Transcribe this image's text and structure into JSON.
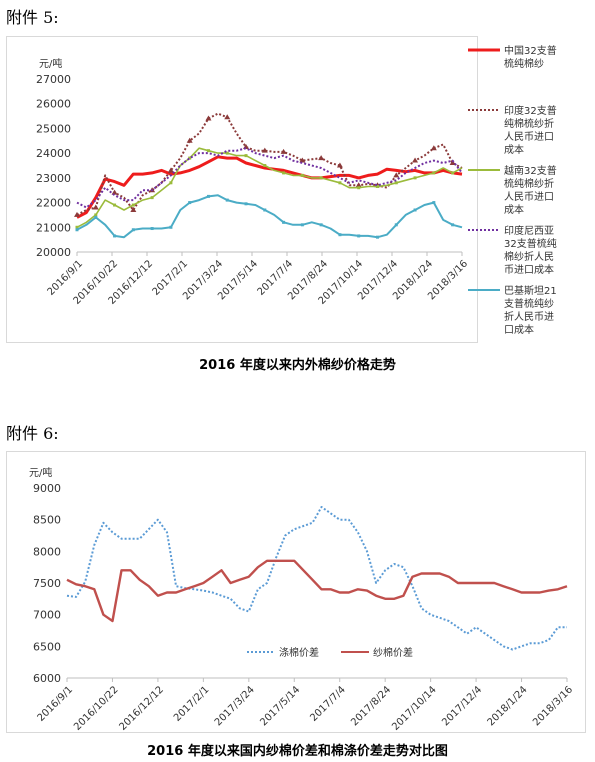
{
  "attachments": [
    {
      "label": "附件 5:",
      "caption": "2016 年度以来内外棉纱价格走势"
    },
    {
      "label": "附件 6:",
      "caption": "2016 年度以来国内纱棉价差和棉涤价差走势对比图"
    }
  ],
  "chart_data": [
    {
      "type": "line",
      "ylabel": "元/吨",
      "ylim": [
        20000,
        27000
      ],
      "yticks": [
        20000,
        21000,
        22000,
        23000,
        24000,
        25000,
        26000,
        27000
      ],
      "xticks": [
        "2016/9/1",
        "2016/10/22",
        "2016/12/12",
        "2017/2/1",
        "2017/3/24",
        "2017/5/14",
        "2017/7/4",
        "2017/8/24",
        "2017/10/14",
        "2017/12/4",
        "2018/1/24",
        "2018/3/16"
      ],
      "grid": false,
      "legend_position": "right",
      "series": [
        {
          "name": "中国32支普梳纯棉纱",
          "color": "#ee1c1c",
          "style": "solid",
          "values": [
            21400,
            21600,
            22200,
            22950,
            22850,
            22700,
            23150,
            23150,
            23200,
            23300,
            23150,
            23200,
            23300,
            23450,
            23650,
            23850,
            23800,
            23800,
            23600,
            23500,
            23400,
            23350,
            23300,
            23200,
            23100,
            23000,
            23000,
            23050,
            23100,
            23100,
            23000,
            23100,
            23150,
            23350,
            23300,
            23250,
            23300,
            23200,
            23200,
            23300,
            23200,
            23150
          ]
        },
        {
          "name": "印度32支普梳纯棉梳纱折人民币进口成本",
          "color": "#8b3a3a",
          "style": "dotted-triangle",
          "values": [
            21500,
            21700,
            21800,
            23100,
            22400,
            22200,
            21700,
            22300,
            22500,
            22800,
            23300,
            23800,
            24500,
            24800,
            25400,
            25600,
            25450,
            24800,
            24250,
            24100,
            24100,
            24050,
            24050,
            23900,
            23700,
            23750,
            23800,
            23600,
            23500,
            22700,
            22700,
            22750,
            22700,
            22600,
            23100,
            23400,
            23700,
            23900,
            24200,
            24350,
            23600,
            23400
          ]
        },
        {
          "name": "越南32支普梳纯棉纱折人民币进口成本",
          "color": "#9bbb3b",
          "style": "solid-marker",
          "values": [
            21000,
            21200,
            21500,
            22100,
            21900,
            21700,
            21900,
            22100,
            22200,
            22500,
            22800,
            23500,
            23800,
            24200,
            24100,
            24000,
            24000,
            23900,
            23900,
            23700,
            23500,
            23300,
            23200,
            23100,
            23100,
            23000,
            23000,
            22900,
            22800,
            22600,
            22600,
            22650,
            22650,
            22700,
            22800,
            22900,
            23000,
            23100,
            23200,
            23400,
            23200,
            23400
          ]
        },
        {
          "name": "印度尼西亚32支普梳纯棉纱折人民币进口成本",
          "color": "#7030a0",
          "style": "dotted",
          "values": [
            22000,
            21800,
            22100,
            22600,
            22300,
            22100,
            22100,
            22500,
            22500,
            22800,
            23100,
            23500,
            23800,
            24000,
            24000,
            23900,
            24100,
            24100,
            24200,
            24000,
            23900,
            23800,
            23900,
            23700,
            23600,
            23500,
            23400,
            23200,
            23000,
            22800,
            22900,
            22800,
            22700,
            22800,
            22900,
            23200,
            23400,
            23600,
            23700,
            23600,
            23700,
            23200
          ]
        },
        {
          "name": "巴基斯坦21支普梳纯纱折人民币进口成本",
          "color": "#4bacc6",
          "style": "solid-marker",
          "values": [
            20900,
            21100,
            21400,
            21100,
            20650,
            20600,
            20900,
            20950,
            20950,
            20950,
            21000,
            21700,
            22000,
            22100,
            22250,
            22300,
            22100,
            22000,
            21950,
            21900,
            21700,
            21500,
            21200,
            21100,
            21100,
            21200,
            21100,
            20950,
            20700,
            20700,
            20650,
            20650,
            20600,
            20700,
            21100,
            21500,
            21700,
            21900,
            22000,
            21300,
            21100,
            21000
          ]
        }
      ]
    },
    {
      "type": "line",
      "ylabel": "元/吨",
      "ylim": [
        6000,
        9000
      ],
      "yticks": [
        6000,
        6500,
        7000,
        7500,
        8000,
        8500,
        9000
      ],
      "xticks": [
        "2016/9/1",
        "2016/10/22",
        "2016/12/12",
        "2017/2/1",
        "2017/3/24",
        "2017/5/14",
        "2017/7/4",
        "2017/8/24",
        "2017/10/14",
        "2017/12/4",
        "2018/1/24",
        "2018/3/16"
      ],
      "grid": false,
      "legend_position": "bottom-center",
      "series": [
        {
          "name": "涤棉价差",
          "color": "#5b9bd5",
          "style": "dotted",
          "values": [
            7300,
            7280,
            7520,
            8100,
            8450,
            8300,
            8200,
            8200,
            8200,
            8350,
            8500,
            8300,
            7450,
            7420,
            7400,
            7380,
            7350,
            7300,
            7250,
            7100,
            7050,
            7400,
            7500,
            7900,
            8250,
            8350,
            8400,
            8450,
            8700,
            8600,
            8500,
            8500,
            8300,
            8000,
            7500,
            7700,
            7800,
            7750,
            7450,
            7100,
            7000,
            6950,
            6900,
            6800,
            6700,
            6800,
            6700,
            6600,
            6500,
            6450,
            6500,
            6550,
            6550,
            6600,
            6800,
            6800
          ]
        },
        {
          "name": "纱棉价差",
          "color": "#c0504d",
          "style": "solid",
          "values": [
            7550,
            7480,
            7450,
            7400,
            7000,
            6900,
            7700,
            7700,
            7550,
            7450,
            7300,
            7350,
            7350,
            7400,
            7450,
            7500,
            7600,
            7700,
            7500,
            7550,
            7600,
            7750,
            7850,
            7850,
            7850,
            7850,
            7700,
            7550,
            7400,
            7400,
            7350,
            7350,
            7400,
            7380,
            7300,
            7250,
            7250,
            7300,
            7600,
            7650,
            7650,
            7650,
            7600,
            7500,
            7500,
            7500,
            7500,
            7500,
            7450,
            7400,
            7350,
            7350,
            7350,
            7380,
            7400,
            7450
          ]
        }
      ]
    }
  ]
}
